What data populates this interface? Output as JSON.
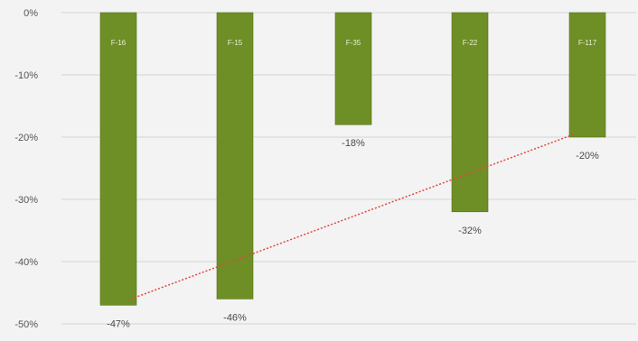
{
  "chart_data": {
    "type": "bar",
    "categories": [
      "F-16",
      "F-15",
      "F-35",
      "F-22",
      "F-117"
    ],
    "values": [
      -47,
      -46,
      -18,
      -32,
      -20
    ],
    "value_labels": [
      "-47%",
      "-46%",
      "-18%",
      "-32%",
      "-20%"
    ],
    "title": "",
    "xlabel": "",
    "ylabel": "",
    "ylim": [
      -50,
      0
    ],
    "yticks": [
      0,
      -10,
      -20,
      -30,
      -40,
      -50
    ],
    "ytick_labels": [
      "0%",
      "-10%",
      "-20%",
      "-30%",
      "-40%",
      "-50%"
    ],
    "grid": true,
    "legend": "none",
    "trendline": {
      "style": "dotted",
      "from_category": "F-16",
      "to_category": "F-117",
      "from_value": -46,
      "to_value": -19.5
    },
    "colors": {
      "bar": "#6e8f26",
      "bar_edge": "#56721c",
      "trendline": "#e0483e",
      "grid": "#d4d4d4",
      "background": "#f3f3f3"
    }
  }
}
